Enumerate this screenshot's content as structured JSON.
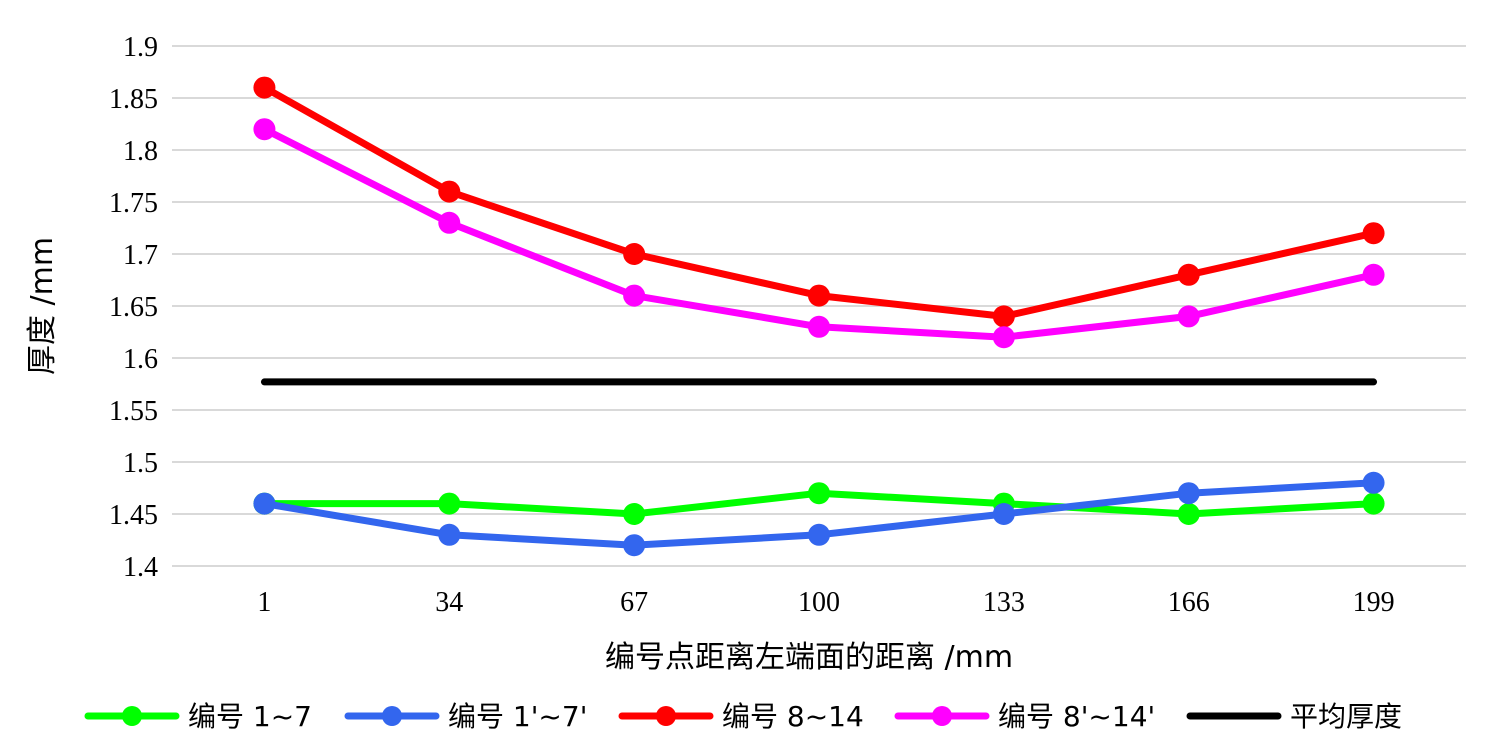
{
  "chart_data": {
    "type": "line",
    "xlabel": "编号点距离左端面的距离 /mm",
    "ylabel": "厚度 /mm",
    "categories": [
      "1",
      "34",
      "67",
      "100",
      "133",
      "166",
      "199"
    ],
    "ylim": [
      1.4,
      1.9
    ],
    "yticks": [
      "1.4",
      "1.45",
      "1.5",
      "1.55",
      "1.6",
      "1.65",
      "1.7",
      "1.75",
      "1.8",
      "1.85",
      "1.9"
    ],
    "grid": true,
    "legend_position": "bottom",
    "series": [
      {
        "name": "编号 1~7",
        "color": "#00ff00",
        "markers": true,
        "values": [
          1.46,
          1.46,
          1.45,
          1.47,
          1.46,
          1.45,
          1.46
        ]
      },
      {
        "name": "编号 1'~7'",
        "color": "#3366ee",
        "markers": true,
        "values": [
          1.46,
          1.43,
          1.42,
          1.43,
          1.45,
          1.47,
          1.48
        ]
      },
      {
        "name": "编号 8~14",
        "color": "#ff0000",
        "markers": true,
        "values": [
          1.86,
          1.76,
          1.7,
          1.66,
          1.64,
          1.68,
          1.72
        ]
      },
      {
        "name": "编号 8'~14'",
        "color": "#ff00ff",
        "markers": true,
        "values": [
          1.82,
          1.73,
          1.66,
          1.63,
          1.62,
          1.64,
          1.68
        ]
      },
      {
        "name": "平均厚度",
        "color": "#000000",
        "markers": false,
        "values": [
          1.577,
          1.577,
          1.577,
          1.577,
          1.577,
          1.577,
          1.577
        ]
      }
    ]
  }
}
